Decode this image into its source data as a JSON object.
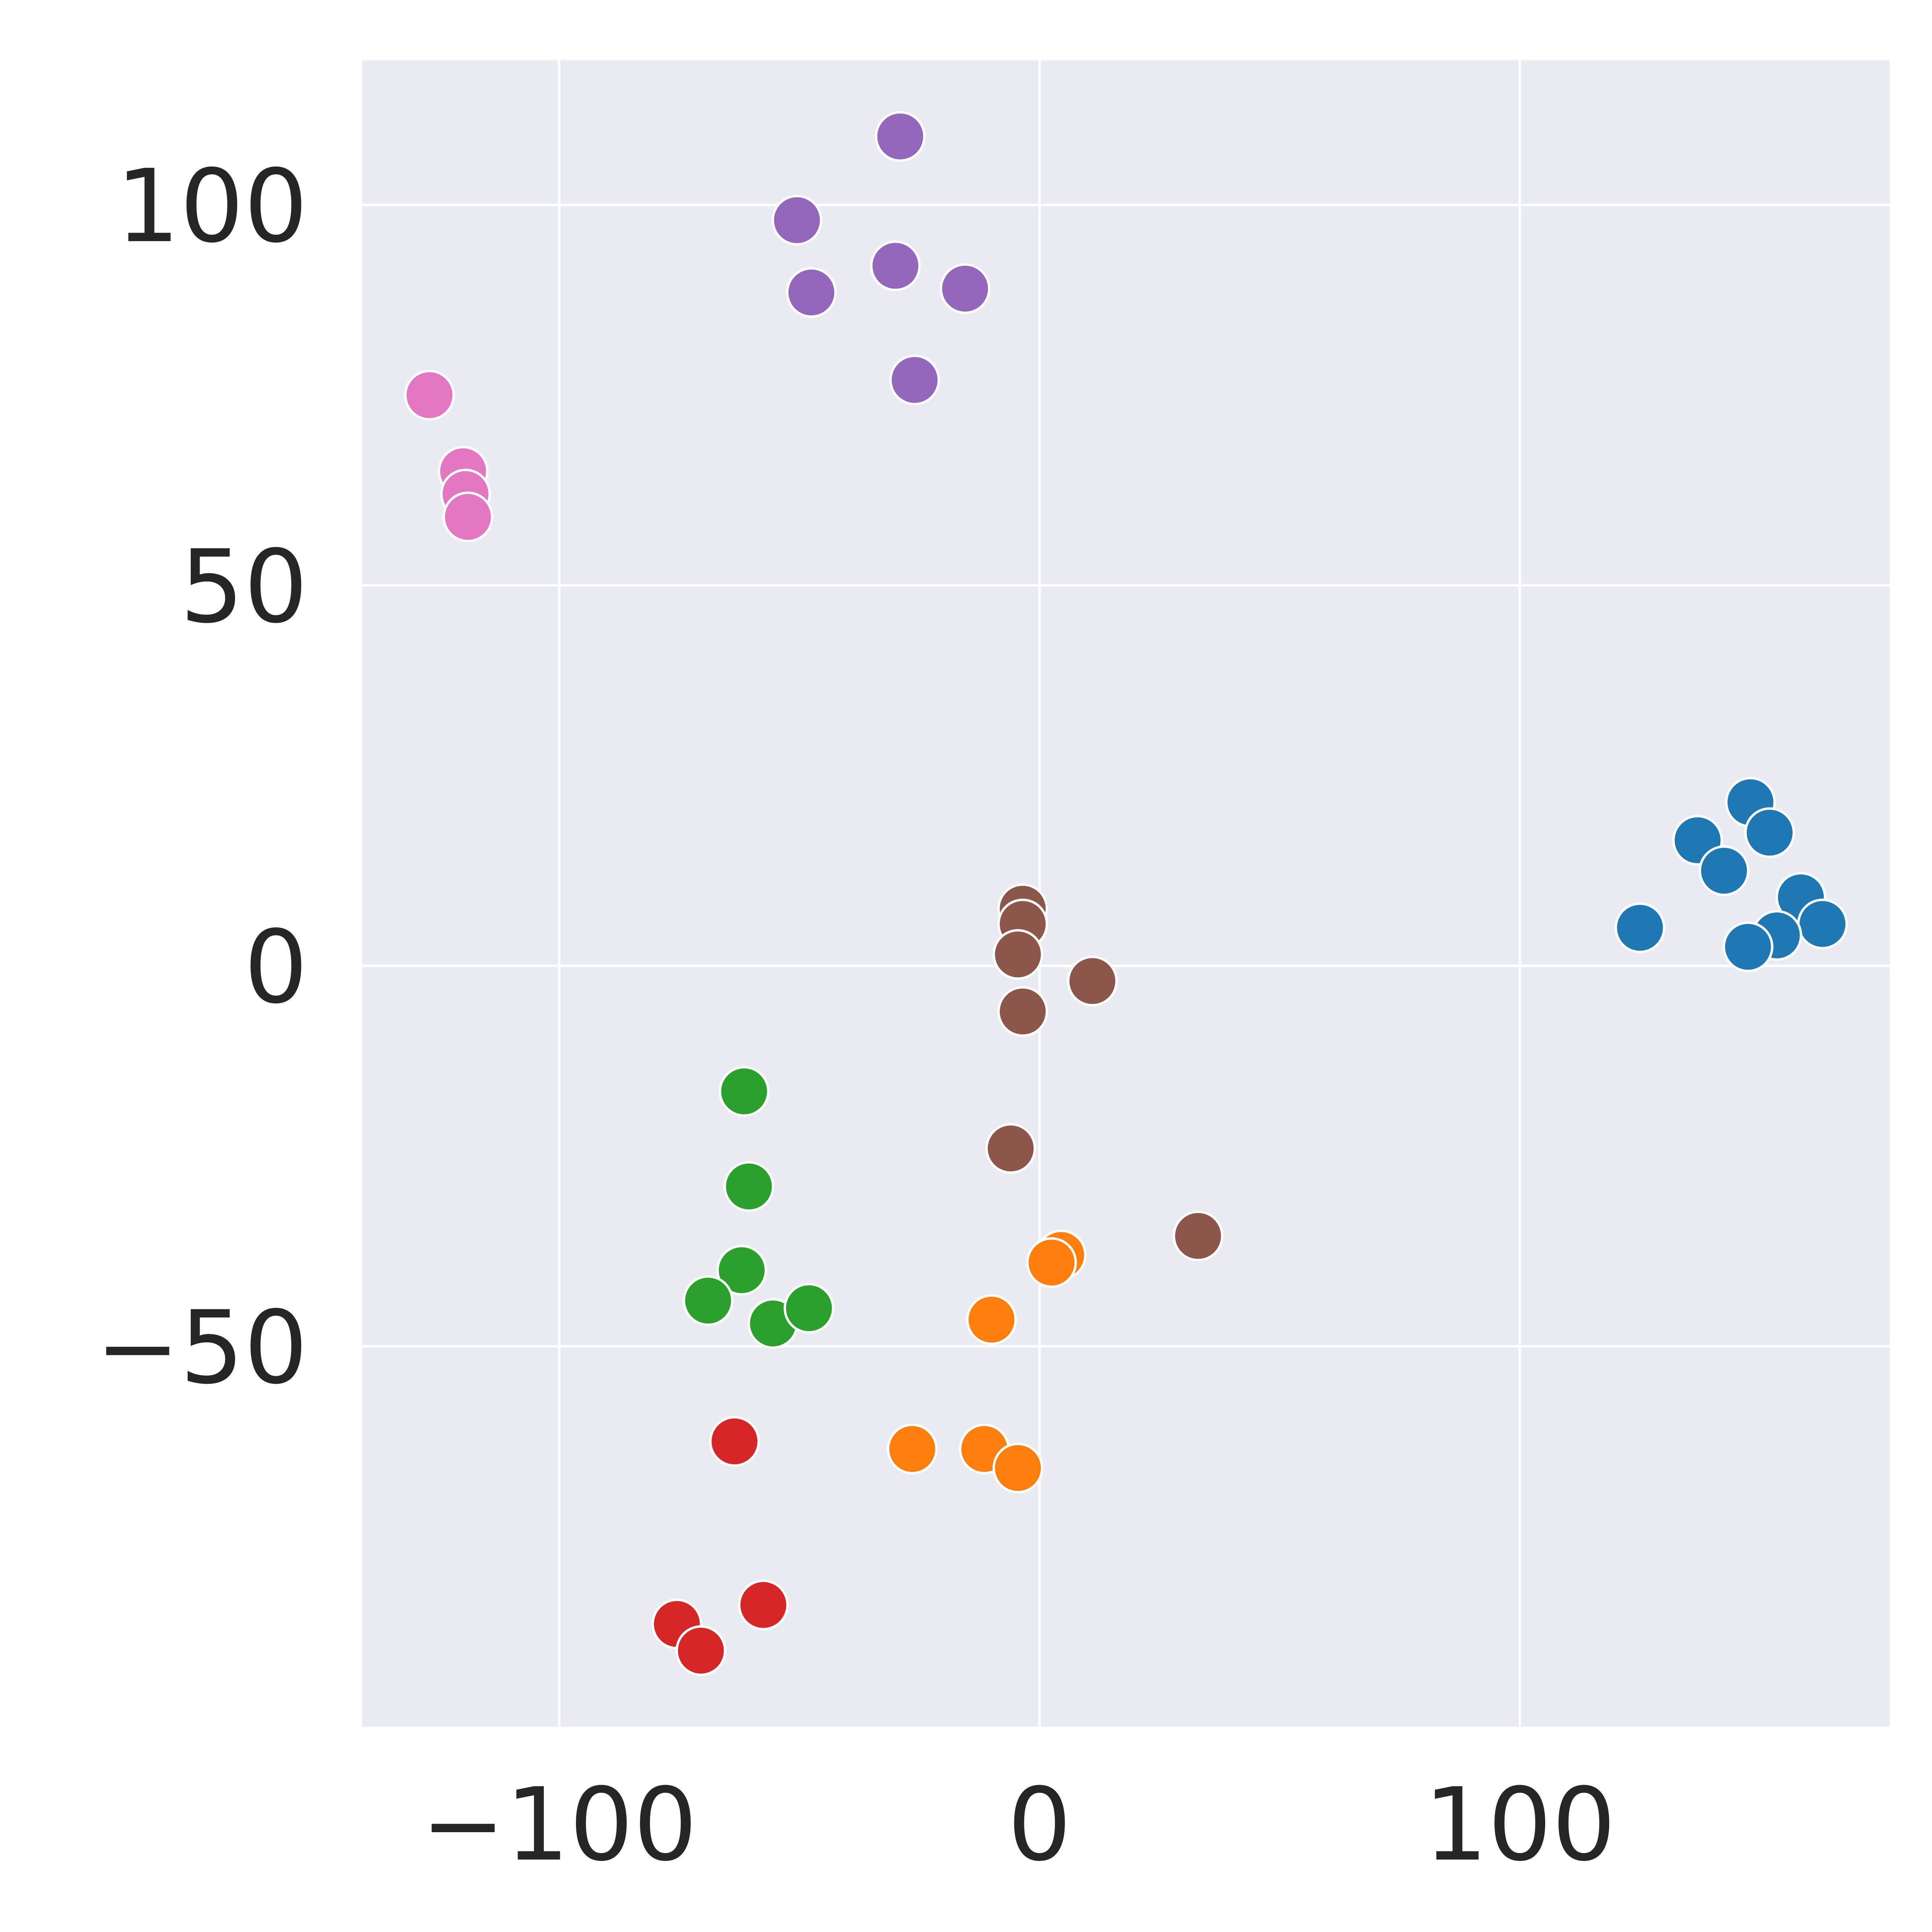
{
  "chart_data": {
    "type": "scatter",
    "title": "",
    "xlabel": "",
    "ylabel": "",
    "xlim": [
      -141,
      177
    ],
    "ylim": [
      -100,
      119
    ],
    "grid": true,
    "legend": "none",
    "background": "#eaeaf2",
    "x_ticks": [
      {
        "value": -100,
        "label": "−100"
      },
      {
        "value": 0,
        "label": "0"
      },
      {
        "value": 100,
        "label": "100"
      }
    ],
    "y_ticks": [
      {
        "value": -50,
        "label": "−50"
      },
      {
        "value": 0,
        "label": "0"
      },
      {
        "value": 50,
        "label": "50"
      },
      {
        "value": 100,
        "label": "100"
      }
    ],
    "series": [
      {
        "color": "#1f77b4",
        "points": [
          [
            148,
            21.5
          ],
          [
            137,
            16.5
          ],
          [
            152,
            17.5
          ],
          [
            142.5,
            12.5
          ],
          [
            158.5,
            9
          ],
          [
            125,
            5
          ],
          [
            163,
            5.5
          ],
          [
            153.5,
            4
          ],
          [
            147.5,
            2.5
          ]
        ]
      },
      {
        "color": "#ff7f0e",
        "points": [
          [
            4.5,
            -38
          ],
          [
            2.5,
            -39
          ],
          [
            -10,
            -46.5
          ],
          [
            -26.5,
            -63.5
          ],
          [
            -11.5,
            -63.5
          ],
          [
            -4.5,
            -66
          ]
        ]
      },
      {
        "color": "#2ca02c",
        "points": [
          [
            -61.5,
            -16.5
          ],
          [
            -60.5,
            -29
          ],
          [
            -62,
            -40
          ],
          [
            -69,
            -44
          ],
          [
            -55.5,
            -47
          ],
          [
            -48,
            -45
          ]
        ]
      },
      {
        "color": "#d62728",
        "points": [
          [
            -63.5,
            -62.5
          ],
          [
            -57.5,
            -84
          ],
          [
            -75.5,
            -86.5
          ],
          [
            -70.5,
            -90
          ]
        ]
      },
      {
        "color": "#9467bd",
        "points": [
          [
            -29,
            109
          ],
          [
            -50.5,
            98
          ],
          [
            -30,
            92
          ],
          [
            -47.5,
            88.5
          ],
          [
            -15.5,
            89
          ],
          [
            -26,
            77
          ]
        ]
      },
      {
        "color": "#8c564b",
        "points": [
          [
            -3.5,
            7.5
          ],
          [
            -3.5,
            5.5
          ],
          [
            -4.5,
            1.5
          ],
          [
            11,
            -2
          ],
          [
            -3.5,
            -6
          ],
          [
            -6,
            -24
          ],
          [
            33,
            -35.5
          ]
        ]
      },
      {
        "color": "#e377c2",
        "points": [
          [
            -127,
            75
          ],
          [
            -120,
            65
          ],
          [
            -119.5,
            62
          ],
          [
            -119,
            59
          ]
        ]
      }
    ]
  }
}
